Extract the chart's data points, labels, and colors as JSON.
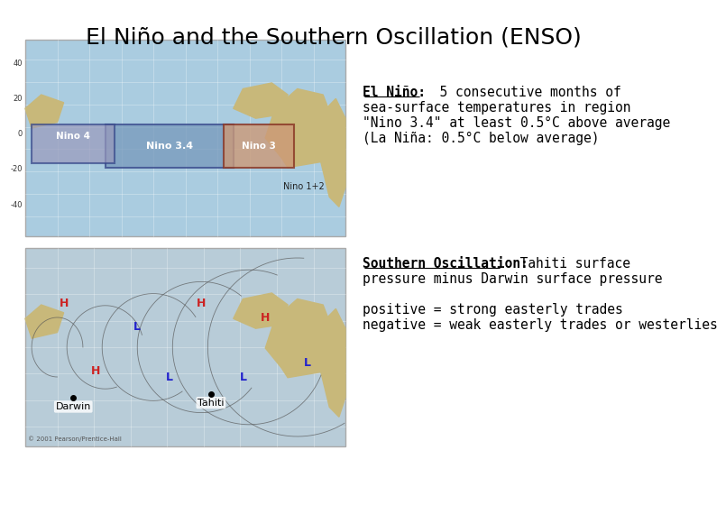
{
  "title": "El Niño and the Southern Oscillation (ENSO)",
  "title_fontsize": 18,
  "background_color": "#ffffff",
  "text_color": "#000000",
  "el_nino_bold": "El Niño:",
  "el_nino_line1_suffix": "  5 consecutive months of",
  "el_nino_line2": "sea-surface temperatures in region",
  "el_nino_line3": "\"Nino 3.4\" at least 0.5°C above average",
  "el_nino_line4": "(La Niña: 0.5°C below average)",
  "so_bold": "Southern Oscillation:",
  "so_line1_suffix": "  Tahiti surface",
  "so_line2": "pressure minus Darwin surface pressure",
  "so_line3": "positive = strong easterly trades",
  "so_line4": "negative = weak easterly trades or westerlies",
  "font_size": 10.5,
  "map_border_color": "#aaaaaa",
  "ocean_color_top": "#aacce0",
  "land_color": "#c8b87a",
  "ocean_color_bot": "#b8ccd8",
  "nino34_color": "#7799bb",
  "nino4_color": "#9999bb",
  "nino3_color": "#cc9977",
  "copyright": "© 2001 Pearson/Prentice-Hall"
}
